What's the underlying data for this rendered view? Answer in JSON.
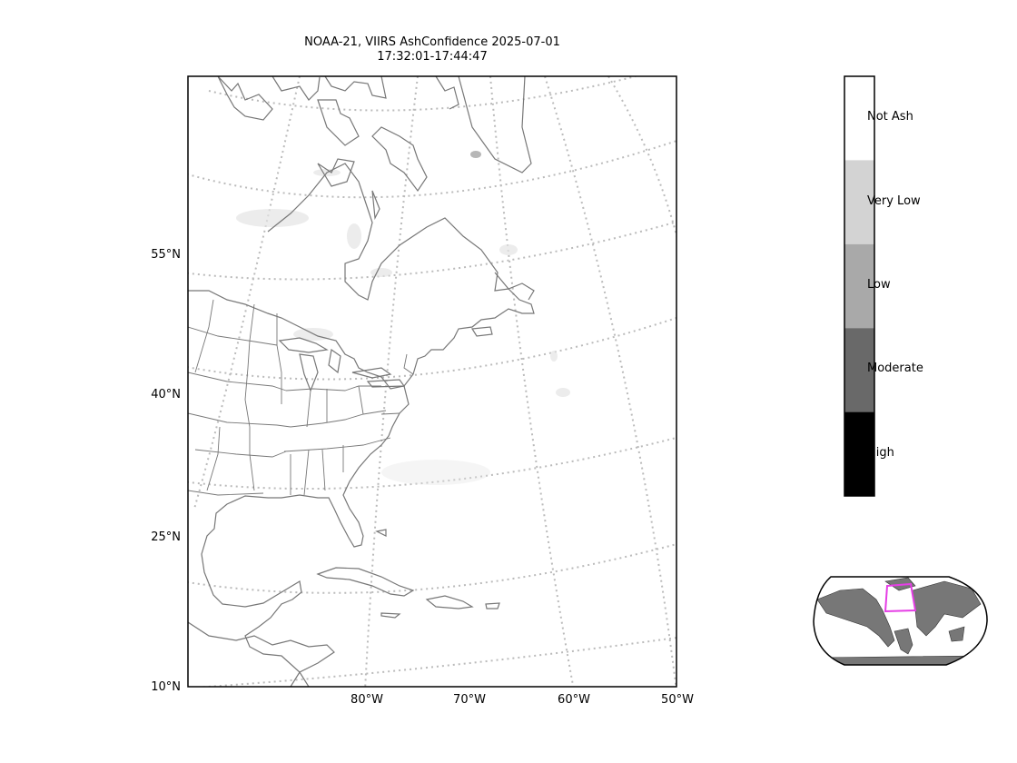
{
  "title": {
    "line1": "NOAA-21, VIIRS AshConfidence 2025-07-01",
    "line2": "17:32:01-17:44:47"
  },
  "map": {
    "lat_labels": [
      "55°N",
      "40°N",
      "25°N",
      "10°N"
    ],
    "lon_labels": [
      "80°W",
      "70°W",
      "60°W",
      "50°W"
    ],
    "gridline_style": "dotted",
    "gridline_color": "#bbbbbb",
    "coastline_color": "#777777"
  },
  "colorbar": {
    "categories": [
      {
        "label": "Not Ash",
        "color": "#ffffff"
      },
      {
        "label": "Very Low",
        "color": "#d3d3d3"
      },
      {
        "label": "Low",
        "color": "#a9a9a9"
      },
      {
        "label": "Moderate",
        "color": "#696969"
      },
      {
        "label": "High",
        "color": "#000000"
      }
    ]
  },
  "inset": {
    "land_color": "#777777",
    "footprint_color": "#e53ee5"
  }
}
